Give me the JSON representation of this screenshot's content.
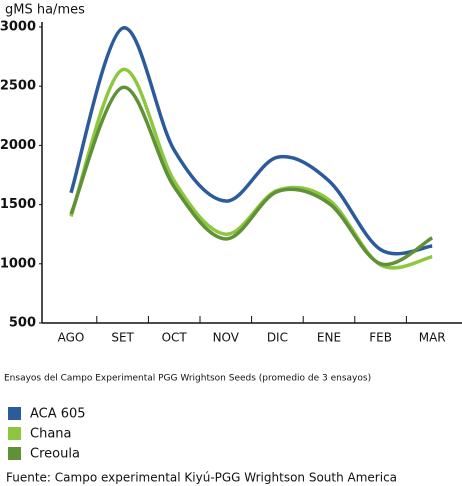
{
  "chart_data": {
    "type": "line",
    "y_label": "gMS ha/mes",
    "categories": [
      "AGO",
      "SET",
      "OCT",
      "NOV",
      "DIC",
      "ENE",
      "FEB",
      "MAR"
    ],
    "series": [
      {
        "name": "ACA 605",
        "color": "#2b5b9b",
        "values": [
          1600,
          2990,
          1960,
          1530,
          1900,
          1700,
          1120,
          1150
        ]
      },
      {
        "name": "Chana",
        "color": "#8dc63f",
        "values": [
          1400,
          2640,
          1700,
          1250,
          1620,
          1540,
          990,
          1060
        ]
      },
      {
        "name": "Creoula",
        "color": "#5f9137",
        "values": [
          1420,
          2490,
          1650,
          1210,
          1610,
          1510,
          1000,
          1220
        ]
      }
    ],
    "ylim": [
      500,
      3000
    ],
    "yticks": [
      500,
      1000,
      1500,
      2000,
      2500,
      3000
    ],
    "note": "Ensayos del Campo Experimental PGG Wrightson Seeds (promedio de 3 ensayos)",
    "source": "Fuente: Campo experimental Kiyú-PGG Wrightson South America"
  }
}
